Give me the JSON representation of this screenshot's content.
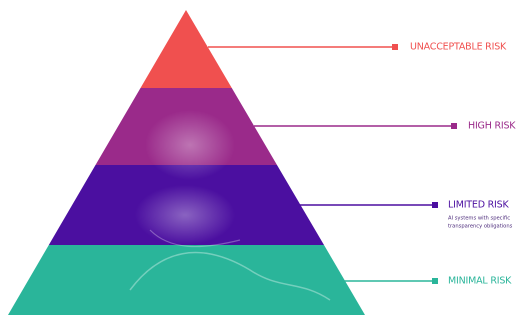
{
  "levels": [
    {
      "label": "UNACCEPTABLE RISK"
    },
    {
      "label": "HIGH RISK"
    },
    {
      "label": "LIMITED RISK",
      "note": [
        "AI systems with specific",
        "transparency obligations"
      ]
    },
    {
      "label": "MINIMAL RISK"
    }
  ]
}
